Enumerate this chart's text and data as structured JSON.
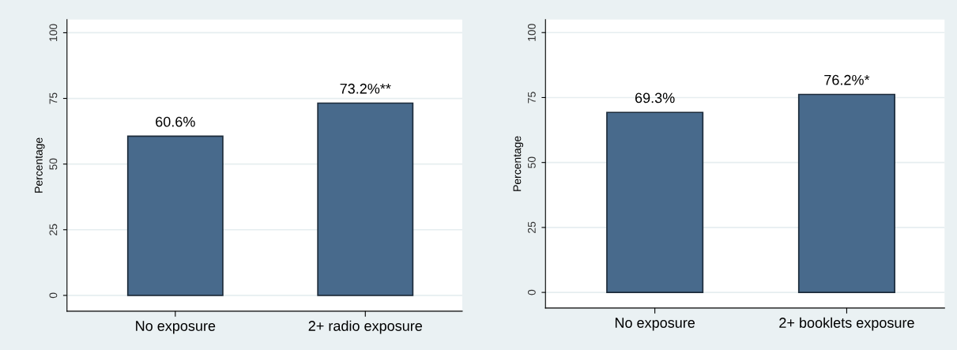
{
  "chart_data": [
    {
      "type": "bar",
      "ylabel": "Percentage",
      "categories": [
        "No exposure",
        "2+ radio exposure"
      ],
      "values": [
        60.6,
        73.2
      ],
      "value_labels": [
        "60.6%",
        "73.2%**"
      ],
      "color": "#486a8c",
      "ylim": [
        -6,
        105
      ],
      "yticks": [
        0,
        25,
        50,
        75,
        100
      ],
      "grid": "y"
    },
    {
      "type": "bar",
      "ylabel": "Percentage",
      "categories": [
        "No exposure",
        "2+ booklets exposure"
      ],
      "values": [
        69.3,
        76.2
      ],
      "value_labels": [
        "69.3%",
        "76.2%*"
      ],
      "color": "#486a8c",
      "ylim": [
        -6,
        105
      ],
      "yticks": [
        0,
        25,
        50,
        75,
        100
      ],
      "grid": "y"
    }
  ]
}
